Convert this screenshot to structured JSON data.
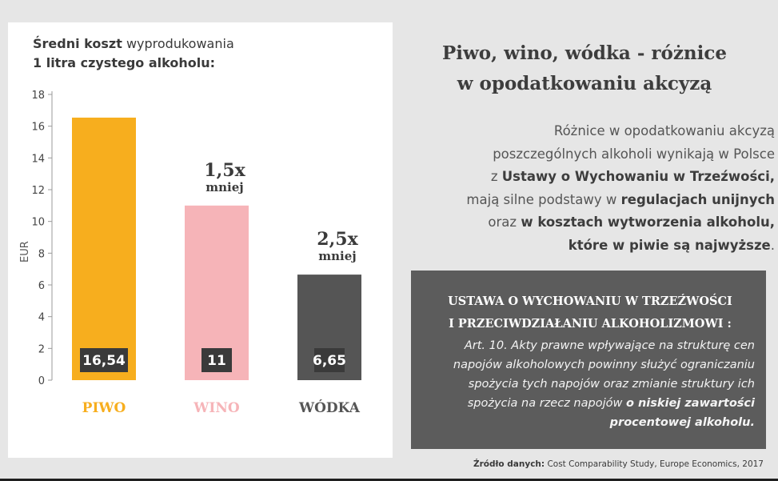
{
  "chart": {
    "title_bold": "Średni koszt",
    "title_rest": "wyprodukowania",
    "title_line2": "1 litra czystego alkoholu:"
  },
  "chart_data": {
    "type": "bar",
    "categories": [
      "PIWO",
      "WINO",
      "WÓDKA"
    ],
    "values": [
      16.54,
      11,
      6.65
    ],
    "value_labels": [
      "16,54",
      "11",
      "6,65"
    ],
    "ylabel": "EUR",
    "ylim": [
      0,
      18
    ],
    "yticks": [
      0,
      2,
      4,
      6,
      8,
      10,
      12,
      14,
      16,
      18
    ],
    "colors": [
      "#f7ae1e",
      "#f6b4b8",
      "#555555"
    ],
    "annotations": [
      {
        "category": "WINO",
        "big": "1,5x",
        "small": "mniej"
      },
      {
        "category": "WÓDKA",
        "big": "2,5x",
        "small": "mniej"
      }
    ]
  },
  "right": {
    "heading_line1": "Piwo, wino, wódka - różnice",
    "heading_line2": "w opodatkowaniu akcyzą",
    "p1": "Różnice w opodatkowaniu akcyzą",
    "p2": "poszczególnych alkoholi wynikają w Polsce",
    "p3a": "z ",
    "p3b": "Ustawy o Wychowaniu w Trzeźwości,",
    "p4a": "mają silne podstawy w ",
    "p4b": "regulacjach unijnych",
    "p5a": "oraz ",
    "p5b": "w kosztach wytworzenia alkoholu,",
    "p6b": "które w piwie są najwyższe",
    "p6a": "."
  },
  "law": {
    "title_line1": "USTAWA O WYCHOWANIU W TRZEŹWOŚCI",
    "title_line2": "I PRZECIWDZIAŁANIU ALKOHOLIZMOWI :",
    "text_main": "Art. 10. Akty prawne wpływające na strukturę cen napojów alkoholowych powinny służyć ograniczaniu spożycia tych napojów oraz zmianie struktury ich spożycia na rzecz napojów ",
    "text_bold": "o niskiej zawartości procentowej alkoholu",
    "text_end": "."
  },
  "source": {
    "label": "Źródło danych:",
    "value": "Cost Comparability Study, Europe Economics, 2017"
  }
}
